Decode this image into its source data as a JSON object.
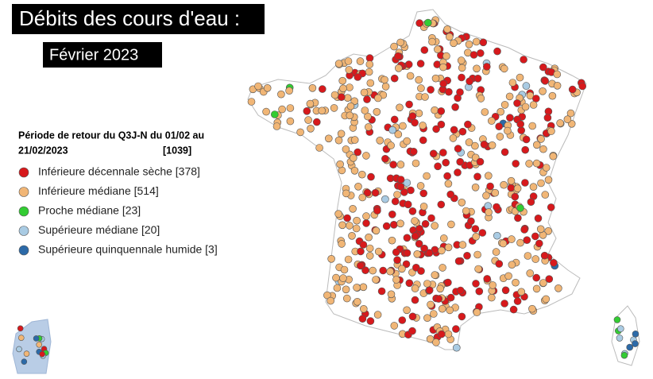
{
  "header": {
    "title": "Débits des cours d'eau :",
    "subtitle": "Février 2023"
  },
  "legend": {
    "heading": [
      "Période de retour du Q3J-N du 01/02 au",
      "21/02/2023"
    ],
    "total": "[1039]",
    "items": [
      {
        "label": "Inférieure décennale sèche [378]",
        "color": "#d7191c"
      },
      {
        "label": "Inférieure médiane [514]",
        "color": "#f1b676"
      },
      {
        "label": "Proche médiane [23]",
        "color": "#33cc33"
      },
      {
        "label": "Supérieure médiane [20]",
        "color": "#a9cbe3"
      },
      {
        "label": "Supérieure quinquennale humide [3]",
        "color": "#2c6aa8"
      }
    ]
  }
}
